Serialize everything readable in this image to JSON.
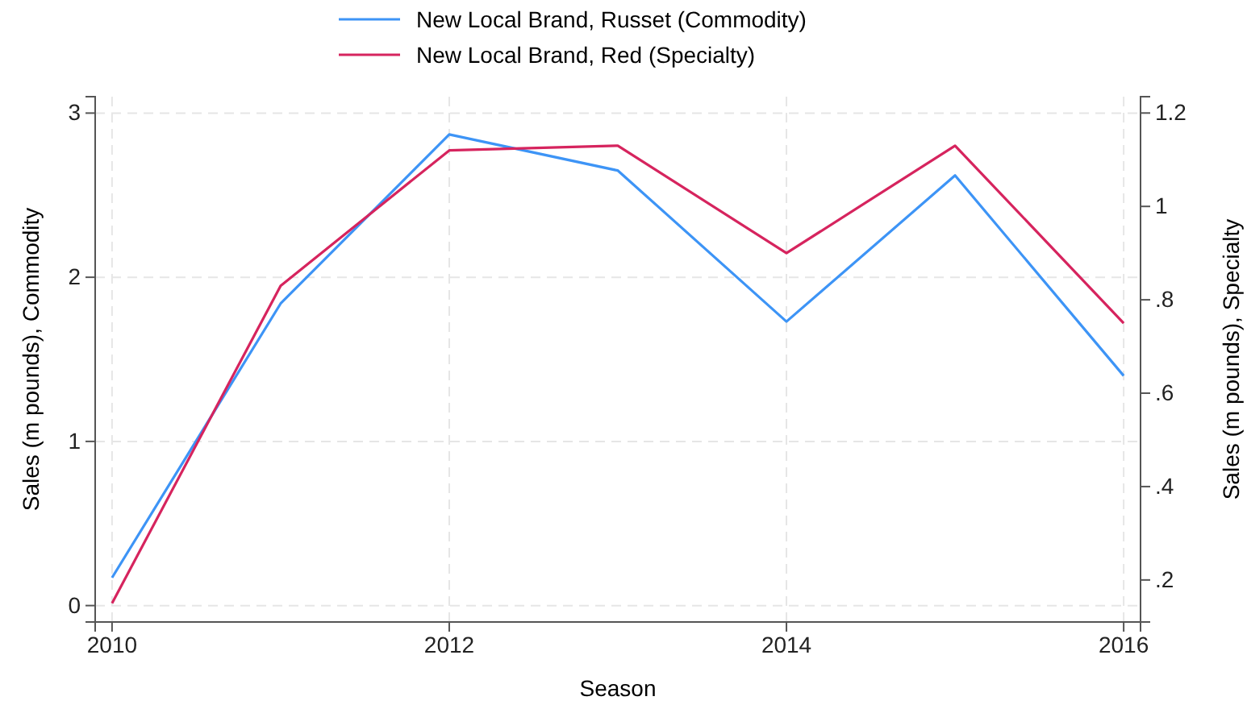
{
  "chart_data": {
    "type": "line",
    "xlabel": "Season",
    "ylabel": "Sales (m pounds), Commodity",
    "y2label": "Sales (m pounds), Specialty",
    "x": [
      2010,
      2011,
      2012,
      2013,
      2014,
      2015,
      2016
    ],
    "series": [
      {
        "name": "New Local Brand, Russet (Commodity)",
        "color": "#3d94f6",
        "values": [
          0.17,
          1.84,
          2.87,
          2.65,
          1.73,
          2.62,
          1.4
        ]
      },
      {
        "name": "New Local Brand, Red (Specialty)",
        "color": "#d6245e",
        "axis": "y2",
        "values": [
          0.15,
          0.83,
          1.12,
          1.13,
          0.9,
          1.13,
          0.75
        ]
      }
    ],
    "xlim": [
      2009.9,
      2016.1
    ],
    "xticks": [
      2010,
      2012,
      2014,
      2016
    ],
    "ylim": [
      -0.1,
      3.1
    ],
    "yticks": [
      0,
      1,
      2,
      3
    ],
    "y2lim": [
      0.11,
      1.235
    ],
    "y2ticks": [
      {
        "value": 0.2,
        "label": ".2"
      },
      {
        "value": 0.4,
        "label": ".4"
      },
      {
        "value": 0.6,
        "label": ".6"
      },
      {
        "value": 0.8,
        "label": ".8"
      },
      {
        "value": 1,
        "label": "1"
      },
      {
        "value": 1.2,
        "label": "1.2"
      }
    ],
    "grid": true,
    "legend": "top",
    "line_style": "solid",
    "marker": "none"
  }
}
